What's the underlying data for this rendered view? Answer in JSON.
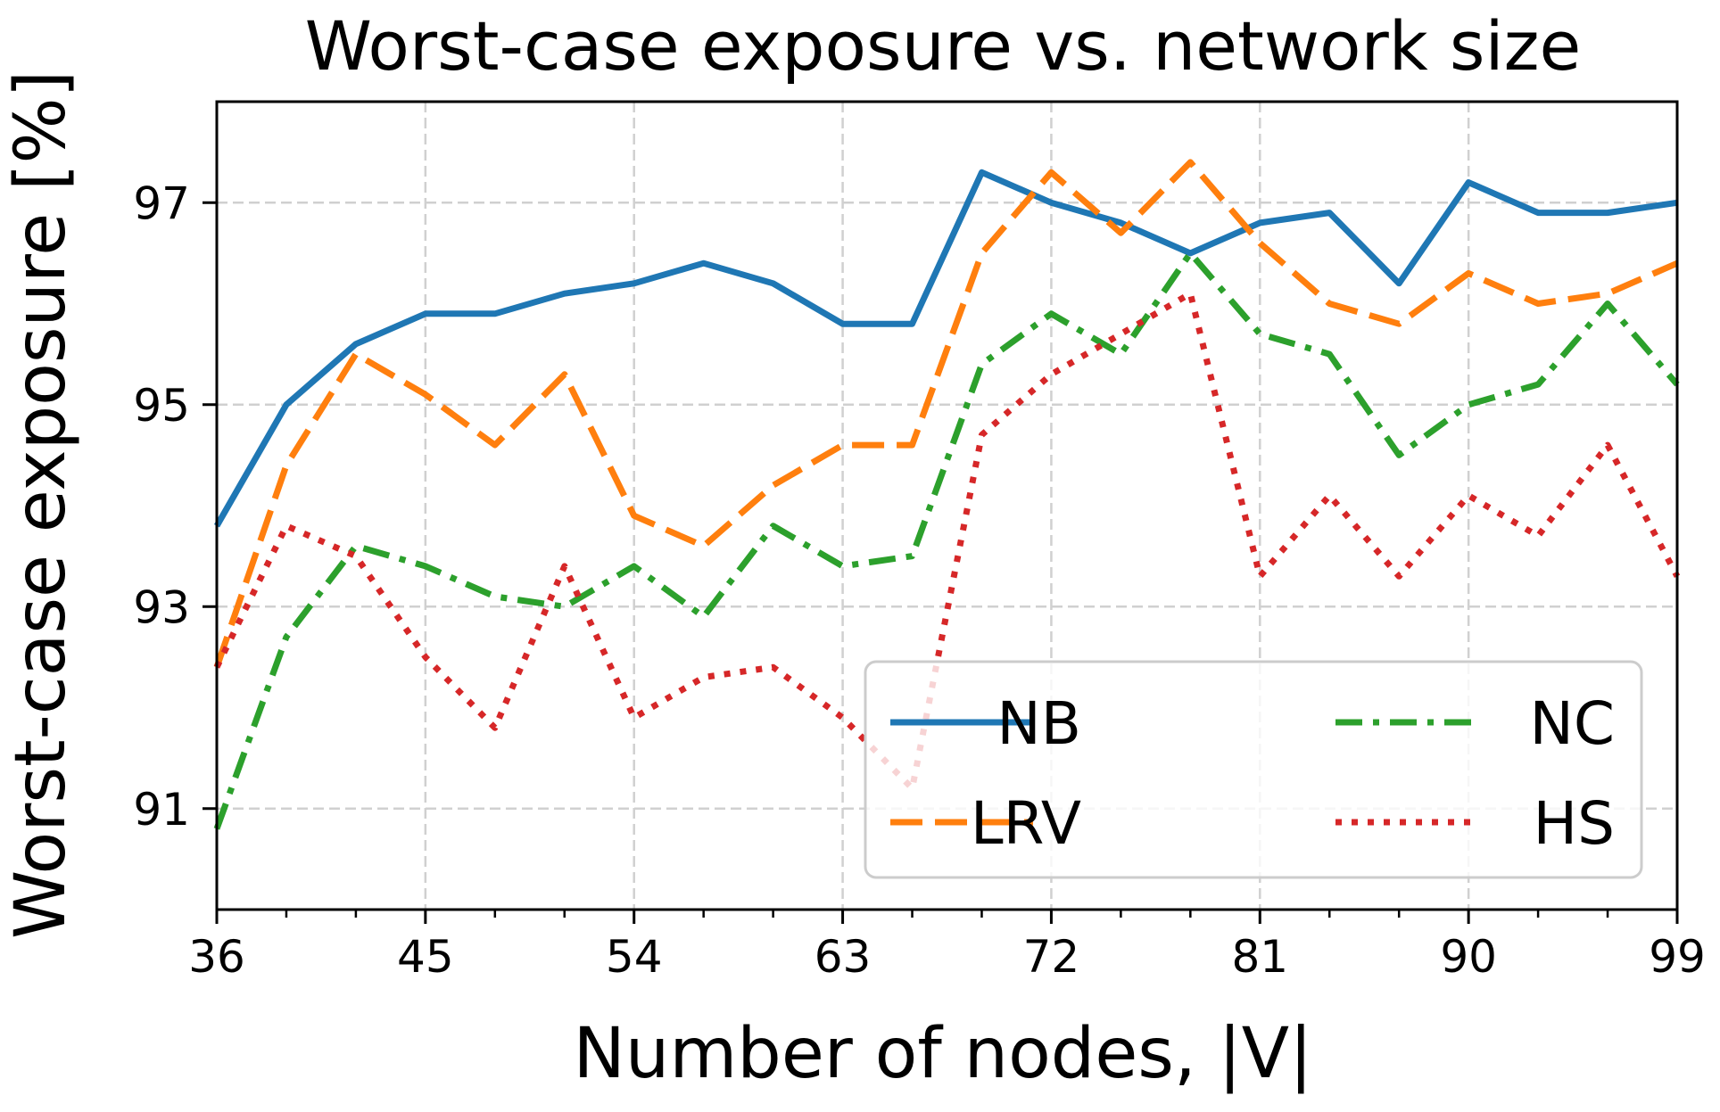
{
  "chart_data": {
    "type": "line",
    "title": "Worst-case exposure vs. network size",
    "xlabel": "Number of nodes, |V|",
    "ylabel": "Worst-case exposure [%]",
    "xlim": [
      36,
      99
    ],
    "ylim": [
      90,
      98
    ],
    "xticks": [
      36,
      45,
      54,
      63,
      72,
      81,
      90,
      99
    ],
    "yticks": [
      91,
      93,
      95,
      97
    ],
    "grid": true,
    "legend_position": "lower-right",
    "legend_columns": 2,
    "x": [
      36,
      39,
      42,
      45,
      48,
      51,
      54,
      57,
      60,
      63,
      66,
      69,
      72,
      75,
      78,
      81,
      84,
      87,
      90,
      93,
      96,
      99
    ],
    "series": [
      {
        "name": "NB",
        "color": "#1f77b4",
        "style": "solid",
        "values": [
          93.8,
          95.0,
          95.6,
          95.9,
          95.9,
          96.1,
          96.2,
          96.4,
          96.2,
          95.8,
          95.8,
          97.3,
          97.0,
          96.8,
          96.5,
          96.8,
          96.9,
          96.2,
          97.2,
          96.9,
          96.9,
          97.0
        ]
      },
      {
        "name": "LRV",
        "color": "#ff7f0e",
        "style": "dashed",
        "values": [
          92.4,
          94.4,
          95.5,
          95.1,
          94.6,
          95.3,
          93.9,
          93.6,
          94.2,
          94.6,
          94.6,
          96.5,
          97.3,
          96.7,
          97.4,
          96.6,
          96.0,
          95.8,
          96.3,
          96.0,
          96.1,
          96.4
        ]
      },
      {
        "name": "NC",
        "color": "#2ca02c",
        "style": "dashdot",
        "values": [
          90.8,
          92.7,
          93.6,
          93.4,
          93.1,
          93.0,
          93.4,
          92.9,
          93.8,
          93.4,
          93.5,
          95.4,
          95.9,
          95.5,
          96.5,
          95.7,
          95.5,
          94.5,
          95.0,
          95.2,
          96.0,
          95.2
        ]
      },
      {
        "name": "HS",
        "color": "#d62728",
        "style": "dotted",
        "values": [
          92.4,
          93.8,
          93.5,
          92.5,
          91.8,
          93.4,
          91.9,
          92.3,
          92.4,
          91.9,
          91.2,
          94.7,
          95.3,
          95.7,
          96.1,
          93.3,
          94.1,
          93.3,
          94.1,
          93.7,
          94.6,
          93.3
        ]
      }
    ]
  }
}
